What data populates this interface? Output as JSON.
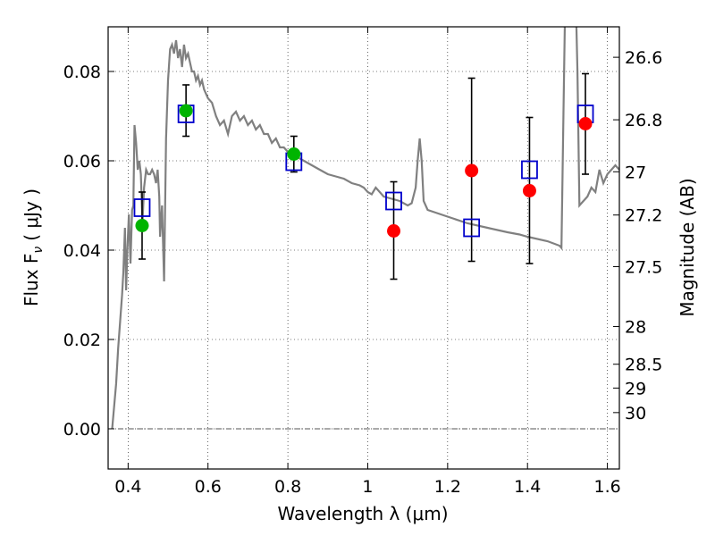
{
  "chart_data": {
    "type": "scatter",
    "xlabel": "Wavelength  λ (μm)",
    "ylabel": "Flux  F",
    "ylabel_sub": "ν",
    "ylabel_unit": "( μJy )",
    "y2label": "Magnitude (AB)",
    "xlim": [
      0.35,
      1.63
    ],
    "ylim": [
      -0.009,
      0.09
    ],
    "grid": true,
    "x_ticks": [
      0.4,
      0.6,
      0.8,
      1.0,
      1.2,
      1.4,
      1.6
    ],
    "x_tick_labels": [
      "0.4",
      "0.6",
      "0.8",
      "1",
      "1.2",
      "1.4",
      "1.6"
    ],
    "y_ticks": [
      0.0,
      0.02,
      0.04,
      0.06,
      0.08
    ],
    "y_tick_labels": [
      "0.00",
      "0.02",
      "0.04",
      "0.06",
      "0.08"
    ],
    "mag_ticks": [
      {
        "mag": 26.6,
        "label": "26.6"
      },
      {
        "mag": 26.8,
        "label": "26.8"
      },
      {
        "mag": 27.0,
        "label": "27"
      },
      {
        "mag": 27.2,
        "label": "27.2"
      },
      {
        "mag": 27.5,
        "label": "27.5"
      },
      {
        "mag": 28.0,
        "label": "28"
      },
      {
        "mag": 28.5,
        "label": "28.5"
      },
      {
        "mag": 29.0,
        "label": "29"
      },
      {
        "mag": 30.0,
        "label": "30"
      }
    ],
    "model_spectrum": {
      "color": "#808080",
      "points": [
        [
          0.36,
          0.0
        ],
        [
          0.365,
          0.005
        ],
        [
          0.37,
          0.01
        ],
        [
          0.375,
          0.018
        ],
        [
          0.38,
          0.024
        ],
        [
          0.385,
          0.03
        ],
        [
          0.388,
          0.035
        ],
        [
          0.392,
          0.045
        ],
        [
          0.395,
          0.031
        ],
        [
          0.398,
          0.04
        ],
        [
          0.402,
          0.048
        ],
        [
          0.406,
          0.037
        ],
        [
          0.41,
          0.049
        ],
        [
          0.413,
          0.05
        ],
        [
          0.416,
          0.068
        ],
        [
          0.42,
          0.064
        ],
        [
          0.424,
          0.058
        ],
        [
          0.428,
          0.06
        ],
        [
          0.432,
          0.057
        ],
        [
          0.436,
          0.046
        ],
        [
          0.44,
          0.054
        ],
        [
          0.445,
          0.058
        ],
        [
          0.45,
          0.057
        ],
        [
          0.455,
          0.057
        ],
        [
          0.46,
          0.058
        ],
        [
          0.465,
          0.057
        ],
        [
          0.47,
          0.055
        ],
        [
          0.474,
          0.058
        ],
        [
          0.478,
          0.052
        ],
        [
          0.48,
          0.043
        ],
        [
          0.485,
          0.05
        ],
        [
          0.49,
          0.033
        ],
        [
          0.495,
          0.065
        ],
        [
          0.5,
          0.078
        ],
        [
          0.505,
          0.085
        ],
        [
          0.51,
          0.086
        ],
        [
          0.515,
          0.084
        ],
        [
          0.52,
          0.087
        ],
        [
          0.525,
          0.083
        ],
        [
          0.53,
          0.085
        ],
        [
          0.535,
          0.081
        ],
        [
          0.54,
          0.086
        ],
        [
          0.545,
          0.083
        ],
        [
          0.55,
          0.084
        ],
        [
          0.555,
          0.082
        ],
        [
          0.56,
          0.08
        ],
        [
          0.565,
          0.08
        ],
        [
          0.57,
          0.078
        ],
        [
          0.575,
          0.079
        ],
        [
          0.58,
          0.077
        ],
        [
          0.585,
          0.078
        ],
        [
          0.59,
          0.076
        ],
        [
          0.595,
          0.075
        ],
        [
          0.6,
          0.074
        ],
        [
          0.61,
          0.073
        ],
        [
          0.62,
          0.07
        ],
        [
          0.63,
          0.068
        ],
        [
          0.64,
          0.069
        ],
        [
          0.65,
          0.066
        ],
        [
          0.66,
          0.07
        ],
        [
          0.67,
          0.071
        ],
        [
          0.68,
          0.069
        ],
        [
          0.69,
          0.07
        ],
        [
          0.7,
          0.068
        ],
        [
          0.71,
          0.069
        ],
        [
          0.72,
          0.067
        ],
        [
          0.73,
          0.068
        ],
        [
          0.74,
          0.066
        ],
        [
          0.75,
          0.066
        ],
        [
          0.76,
          0.064
        ],
        [
          0.77,
          0.065
        ],
        [
          0.78,
          0.063
        ],
        [
          0.79,
          0.063
        ],
        [
          0.8,
          0.062
        ],
        [
          0.82,
          0.061
        ],
        [
          0.84,
          0.06
        ],
        [
          0.86,
          0.059
        ],
        [
          0.88,
          0.058
        ],
        [
          0.9,
          0.057
        ],
        [
          0.92,
          0.0565
        ],
        [
          0.94,
          0.056
        ],
        [
          0.96,
          0.055
        ],
        [
          0.98,
          0.0545
        ],
        [
          0.99,
          0.054
        ],
        [
          1.0,
          0.053
        ],
        [
          1.01,
          0.0525
        ],
        [
          1.02,
          0.054
        ],
        [
          1.03,
          0.053
        ],
        [
          1.04,
          0.052
        ],
        [
          1.06,
          0.0515
        ],
        [
          1.08,
          0.051
        ],
        [
          1.1,
          0.05
        ],
        [
          1.11,
          0.0505
        ],
        [
          1.12,
          0.054
        ],
        [
          1.125,
          0.06
        ],
        [
          1.13,
          0.065
        ],
        [
          1.135,
          0.06
        ],
        [
          1.14,
          0.051
        ],
        [
          1.15,
          0.049
        ],
        [
          1.2,
          0.0475
        ],
        [
          1.25,
          0.046
        ],
        [
          1.3,
          0.045
        ],
        [
          1.35,
          0.044
        ],
        [
          1.38,
          0.0435
        ],
        [
          1.4,
          0.043
        ],
        [
          1.45,
          0.042
        ],
        [
          1.48,
          0.041
        ],
        [
          1.485,
          0.0405
        ],
        [
          1.49,
          0.07
        ],
        [
          1.495,
          0.1
        ],
        [
          1.5,
          0.1
        ],
        [
          1.505,
          0.1
        ],
        [
          1.51,
          0.1
        ],
        [
          1.515,
          0.1
        ],
        [
          1.52,
          0.1
        ],
        [
          1.525,
          0.08
        ],
        [
          1.53,
          0.05
        ],
        [
          1.54,
          0.051
        ],
        [
          1.55,
          0.052
        ],
        [
          1.56,
          0.054
        ],
        [
          1.57,
          0.053
        ],
        [
          1.58,
          0.058
        ],
        [
          1.59,
          0.055
        ],
        [
          1.6,
          0.057
        ],
        [
          1.61,
          0.058
        ],
        [
          1.62,
          0.059
        ],
        [
          1.63,
          0.058
        ]
      ]
    },
    "model_photometry": {
      "marker": "open-square",
      "color": "#0000cc",
      "points": [
        [
          0.435,
          0.0495
        ],
        [
          0.545,
          0.0705
        ],
        [
          0.815,
          0.0598
        ],
        [
          1.065,
          0.051
        ],
        [
          1.26,
          0.045
        ],
        [
          1.405,
          0.058
        ],
        [
          1.545,
          0.0705
        ]
      ]
    },
    "detections": {
      "marker": "filled-circle",
      "color": "#00b400",
      "points": [
        [
          0.435,
          0.0455
        ],
        [
          0.545,
          0.0712
        ],
        [
          0.815,
          0.0615
        ]
      ]
    },
    "low_sn_points": {
      "marker": "filled-circle",
      "color": "#ff0000",
      "points": [
        [
          1.065,
          0.0443
        ],
        [
          1.26,
          0.0578
        ],
        [
          1.405,
          0.0533
        ],
        [
          1.545,
          0.0683
        ]
      ]
    },
    "error_bars": [
      {
        "x": 0.435,
        "low": 0.038,
        "high": 0.053
      },
      {
        "x": 0.545,
        "low": 0.0655,
        "high": 0.077
      },
      {
        "x": 0.815,
        "low": 0.0575,
        "high": 0.0655
      },
      {
        "x": 1.065,
        "low": 0.0335,
        "high": 0.0553
      },
      {
        "x": 1.26,
        "low": 0.0375,
        "high": 0.0785
      },
      {
        "x": 1.405,
        "low": 0.037,
        "high": 0.0697
      },
      {
        "x": 1.545,
        "low": 0.057,
        "high": 0.0795
      }
    ]
  }
}
